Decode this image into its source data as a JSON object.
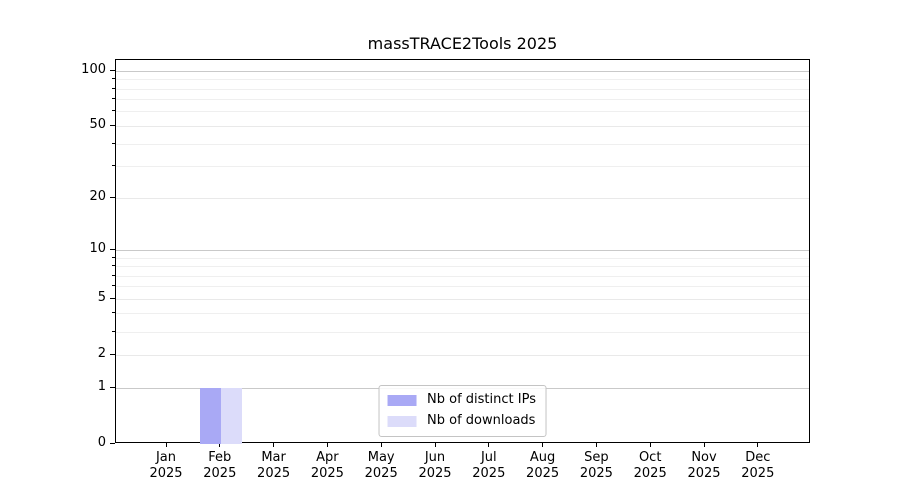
{
  "title": "massTRACE2Tools 2025",
  "chart_data": {
    "type": "bar",
    "title": "massTRACE2Tools 2025",
    "xlabel": "",
    "ylabel": "",
    "y_scale": "log(1+x)",
    "ylim": [
      0,
      115
    ],
    "grid": true,
    "legend_position": "lower center",
    "categories": [
      "Jan",
      "Feb",
      "Mar",
      "Apr",
      "May",
      "Jun",
      "Jul",
      "Aug",
      "Sep",
      "Oct",
      "Nov",
      "Dec"
    ],
    "year_label": "2025",
    "series": [
      {
        "name": "Nb of distinct IPs",
        "color": "#a9a9f5",
        "values": [
          0,
          1,
          0,
          0,
          0,
          0,
          0,
          0,
          0,
          0,
          0,
          0
        ]
      },
      {
        "name": "Nb of downloads",
        "color": "#dcdcfa",
        "values": [
          0,
          1,
          0,
          0,
          0,
          0,
          0,
          0,
          0,
          0,
          0,
          0
        ]
      }
    ],
    "y_major_ticks": [
      0,
      1,
      2,
      5,
      10,
      20,
      50,
      100
    ],
    "y_decade_gridlines": [
      1,
      10,
      100
    ],
    "y_minor_gridlines": [
      3,
      4,
      6,
      7,
      8,
      9,
      30,
      40,
      60,
      70,
      80,
      90
    ]
  }
}
